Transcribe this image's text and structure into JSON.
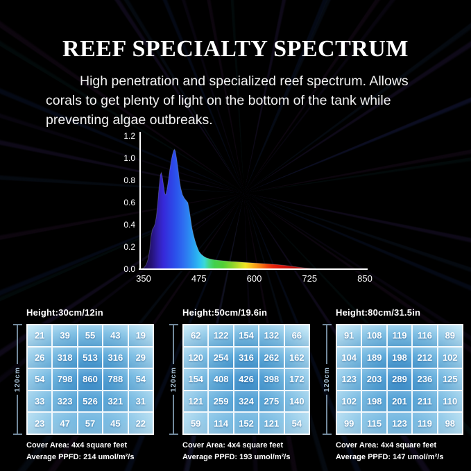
{
  "page": {
    "title": "REEF SPECIALTY SPECTRUM",
    "subtitle_lines": [
      "High penetration and specialized reef spectrum. Allows",
      "corals to get plenty of light on the bottom of the tank while",
      "preventing algae outbreaks."
    ]
  },
  "chart_data": {
    "type": "area",
    "title": "",
    "xlabel": "",
    "ylabel": "",
    "legend": "none",
    "grid": "off",
    "xlim": [
      342,
      860
    ],
    "ylim": [
      0,
      1.2
    ],
    "x_ticks": [
      "350",
      "475",
      "600",
      "725",
      "850"
    ],
    "y_ticks": [
      "0.0",
      "0.2",
      "0.4",
      "0.6",
      "0.8",
      "1.0",
      "1.2"
    ],
    "axis_color": "#ffffff",
    "series": [
      {
        "name": "relative_spectral_intensity",
        "points": [
          [
            342,
            0
          ],
          [
            350,
            0.01
          ],
          [
            356,
            0.04
          ],
          [
            360,
            0.09
          ],
          [
            364,
            0.18
          ],
          [
            367,
            0.3
          ],
          [
            370,
            0.36
          ],
          [
            373,
            0.38
          ],
          [
            376,
            0.41
          ],
          [
            379,
            0.48
          ],
          [
            382,
            0.6
          ],
          [
            385,
            0.74
          ],
          [
            388,
            0.85
          ],
          [
            390,
            0.87
          ],
          [
            392,
            0.84
          ],
          [
            395,
            0.76
          ],
          [
            398,
            0.68
          ],
          [
            400,
            0.67
          ],
          [
            403,
            0.72
          ],
          [
            406,
            0.8
          ],
          [
            409,
            0.89
          ],
          [
            412,
            0.97
          ],
          [
            415,
            1.03
          ],
          [
            418,
            1.07
          ],
          [
            420,
            1.08
          ],
          [
            422,
            1.06
          ],
          [
            425,
            0.99
          ],
          [
            428,
            0.9
          ],
          [
            431,
            0.8
          ],
          [
            434,
            0.73
          ],
          [
            438,
            0.67
          ],
          [
            442,
            0.64
          ],
          [
            446,
            0.62
          ],
          [
            450,
            0.6
          ],
          [
            453,
            0.54
          ],
          [
            456,
            0.46
          ],
          [
            459,
            0.38
          ],
          [
            462,
            0.32
          ],
          [
            466,
            0.26
          ],
          [
            470,
            0.21
          ],
          [
            475,
            0.16
          ],
          [
            480,
            0.135
          ],
          [
            486,
            0.115
          ],
          [
            492,
            0.102
          ],
          [
            500,
            0.092
          ],
          [
            510,
            0.084
          ],
          [
            522,
            0.078
          ],
          [
            535,
            0.073
          ],
          [
            548,
            0.069
          ],
          [
            560,
            0.066
          ],
          [
            575,
            0.062
          ],
          [
            590,
            0.058
          ],
          [
            605,
            0.054
          ],
          [
            620,
            0.05
          ],
          [
            635,
            0.046
          ],
          [
            650,
            0.041
          ],
          [
            665,
            0.036
          ],
          [
            678,
            0.03
          ],
          [
            690,
            0.024
          ],
          [
            702,
            0.017
          ],
          [
            714,
            0.011
          ],
          [
            726,
            0.007
          ],
          [
            740,
            0.004
          ],
          [
            756,
            0.002
          ],
          [
            775,
            0.001
          ],
          [
            800,
            0.0005
          ],
          [
            840,
            0
          ]
        ]
      }
    ],
    "gradient_stops": [
      [
        350,
        "#1a0a4e"
      ],
      [
        368,
        "#251377"
      ],
      [
        383,
        "#3220b4"
      ],
      [
        395,
        "#3629d8"
      ],
      [
        410,
        "#2f3fe4"
      ],
      [
        425,
        "#2b55ec"
      ],
      [
        440,
        "#2e6ef0"
      ],
      [
        455,
        "#2b8df2"
      ],
      [
        468,
        "#2aaaf2"
      ],
      [
        478,
        "#2fc4f0"
      ],
      [
        488,
        "#3bd8d6"
      ],
      [
        498,
        "#43d783"
      ],
      [
        510,
        "#42d04c"
      ],
      [
        530,
        "#52cf36"
      ],
      [
        550,
        "#8ad42c"
      ],
      [
        568,
        "#c8dd28"
      ],
      [
        580,
        "#eee324"
      ],
      [
        592,
        "#f6c11e"
      ],
      [
        604,
        "#f79c18"
      ],
      [
        616,
        "#f67712"
      ],
      [
        628,
        "#ef4b0e"
      ],
      [
        642,
        "#e6250b"
      ],
      [
        660,
        "#d61408"
      ],
      [
        680,
        "#c00d06"
      ],
      [
        705,
        "#a00a05"
      ],
      [
        730,
        "#7c0806"
      ],
      [
        770,
        "#550505"
      ],
      [
        850,
        "#2e0202"
      ]
    ]
  },
  "grids": [
    {
      "height_label": "Height:30cm/12in",
      "side_label": "120cm",
      "rows": [
        [
          21,
          39,
          55,
          43,
          19
        ],
        [
          26,
          318,
          513,
          316,
          29
        ],
        [
          54,
          798,
          860,
          788,
          54
        ],
        [
          33,
          323,
          526,
          321,
          31
        ],
        [
          23,
          47,
          57,
          45,
          22
        ]
      ],
      "cover_area": "Cover Area: 4x4 square feet",
      "avg_ppfd": "Average PPFD: 214 umol/m²/s"
    },
    {
      "height_label": "Height:50cm/19.6in",
      "side_label": "120cm",
      "rows": [
        [
          62,
          122,
          154,
          132,
          66
        ],
        [
          120,
          254,
          316,
          262,
          162
        ],
        [
          154,
          408,
          426,
          398,
          172
        ],
        [
          121,
          259,
          324,
          275,
          140
        ],
        [
          59,
          114,
          152,
          121,
          54
        ]
      ],
      "cover_area": "Cover Area: 4x4 square feet",
      "avg_ppfd": "Average PPFD: 193 umol/m²/s"
    },
    {
      "height_label": "Height:80cm/31.5in",
      "side_label": "120cm",
      "rows": [
        [
          91,
          108,
          119,
          116,
          89
        ],
        [
          104,
          189,
          198,
          212,
          102
        ],
        [
          123,
          203,
          289,
          236,
          125
        ],
        [
          102,
          198,
          201,
          211,
          110
        ],
        [
          99,
          115,
          123,
          119,
          98
        ]
      ],
      "cover_area": "Cover Area: 4x4 square feet",
      "avg_ppfd": "Average PPFD: 147 umol/m²/s"
    }
  ],
  "colors": {
    "background": "#000000",
    "text": "#ffffff",
    "grid_center_blue": "#3e90cd",
    "grid_edge_blue": "#c3e8f6",
    "dimension_line": "#72899c",
    "dimension_label": "#a9c3d8"
  }
}
